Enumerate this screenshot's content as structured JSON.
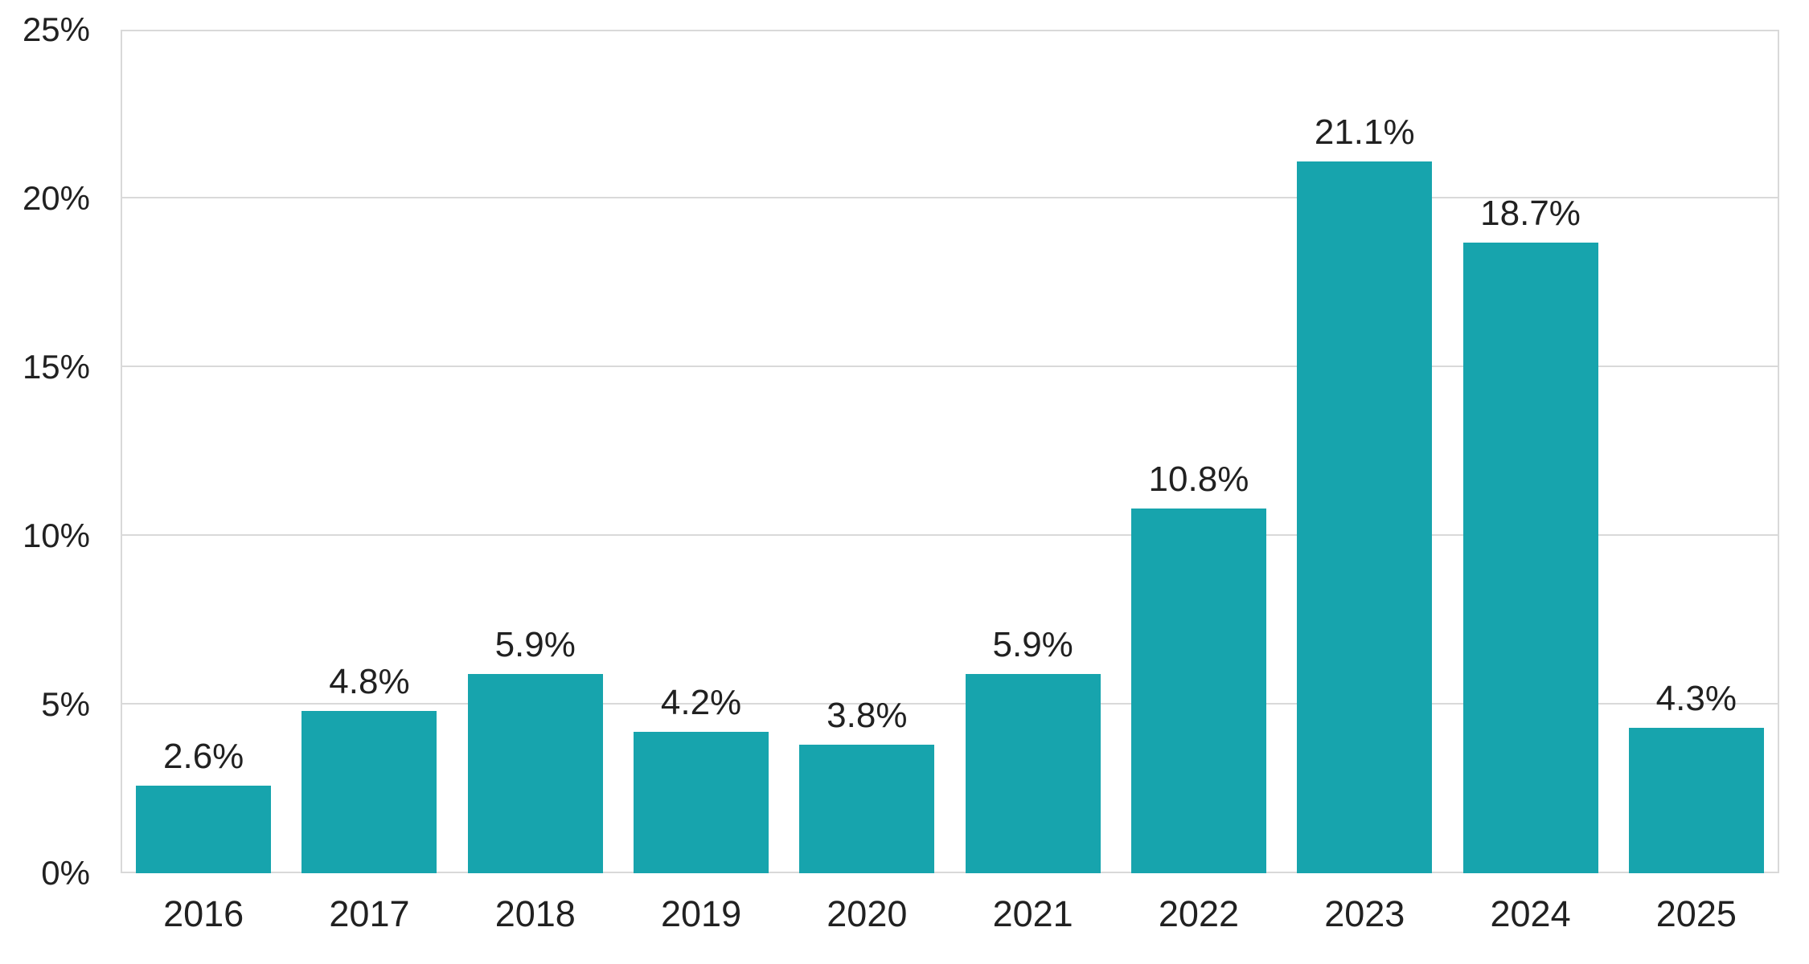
{
  "chart_data": {
    "type": "bar",
    "categories": [
      "2016",
      "2017",
      "2018",
      "2019",
      "2020",
      "2021",
      "2022",
      "2023",
      "2024",
      "2025"
    ],
    "values": [
      2.6,
      4.8,
      5.9,
      4.2,
      3.8,
      5.9,
      10.8,
      21.1,
      18.7,
      4.3
    ],
    "bar_labels": [
      "2.6%",
      "4.8%",
      "5.9%",
      "4.2%",
      "3.8%",
      "5.9%",
      "10.8%",
      "21.1%",
      "18.7%",
      "4.3%"
    ],
    "title": "",
    "xlabel": "",
    "ylabel": "",
    "ylim": [
      0,
      25
    ],
    "yticks": [
      0,
      5,
      10,
      15,
      20,
      25
    ],
    "ytick_labels": [
      "0%",
      "5%",
      "10%",
      "15%",
      "20%",
      "25%"
    ],
    "grid": true,
    "legend": "none",
    "colors": {
      "bar": "#17A4AD",
      "text": "#212121",
      "gridline": "#D9D9D9",
      "frame": "#D9D9D9",
      "background": "#FFFFFF"
    }
  }
}
